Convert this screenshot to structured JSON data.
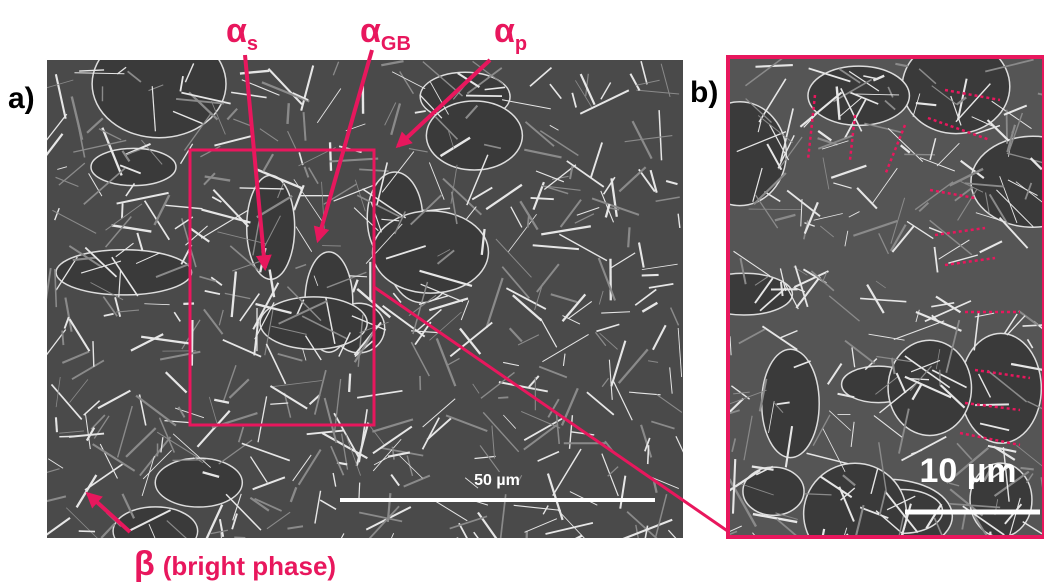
{
  "panels": [
    {
      "label": "a)",
      "scale_bar": "50 µm"
    },
    {
      "label": "b)",
      "scale_bar": "10 µm"
    }
  ],
  "annotations": [
    {
      "symbol": "α",
      "subscript": "s"
    },
    {
      "symbol": "α",
      "subscript": "GB"
    },
    {
      "symbol": "α",
      "subscript": "p"
    },
    {
      "symbol": "β",
      "text": "(bright phase)"
    }
  ]
}
